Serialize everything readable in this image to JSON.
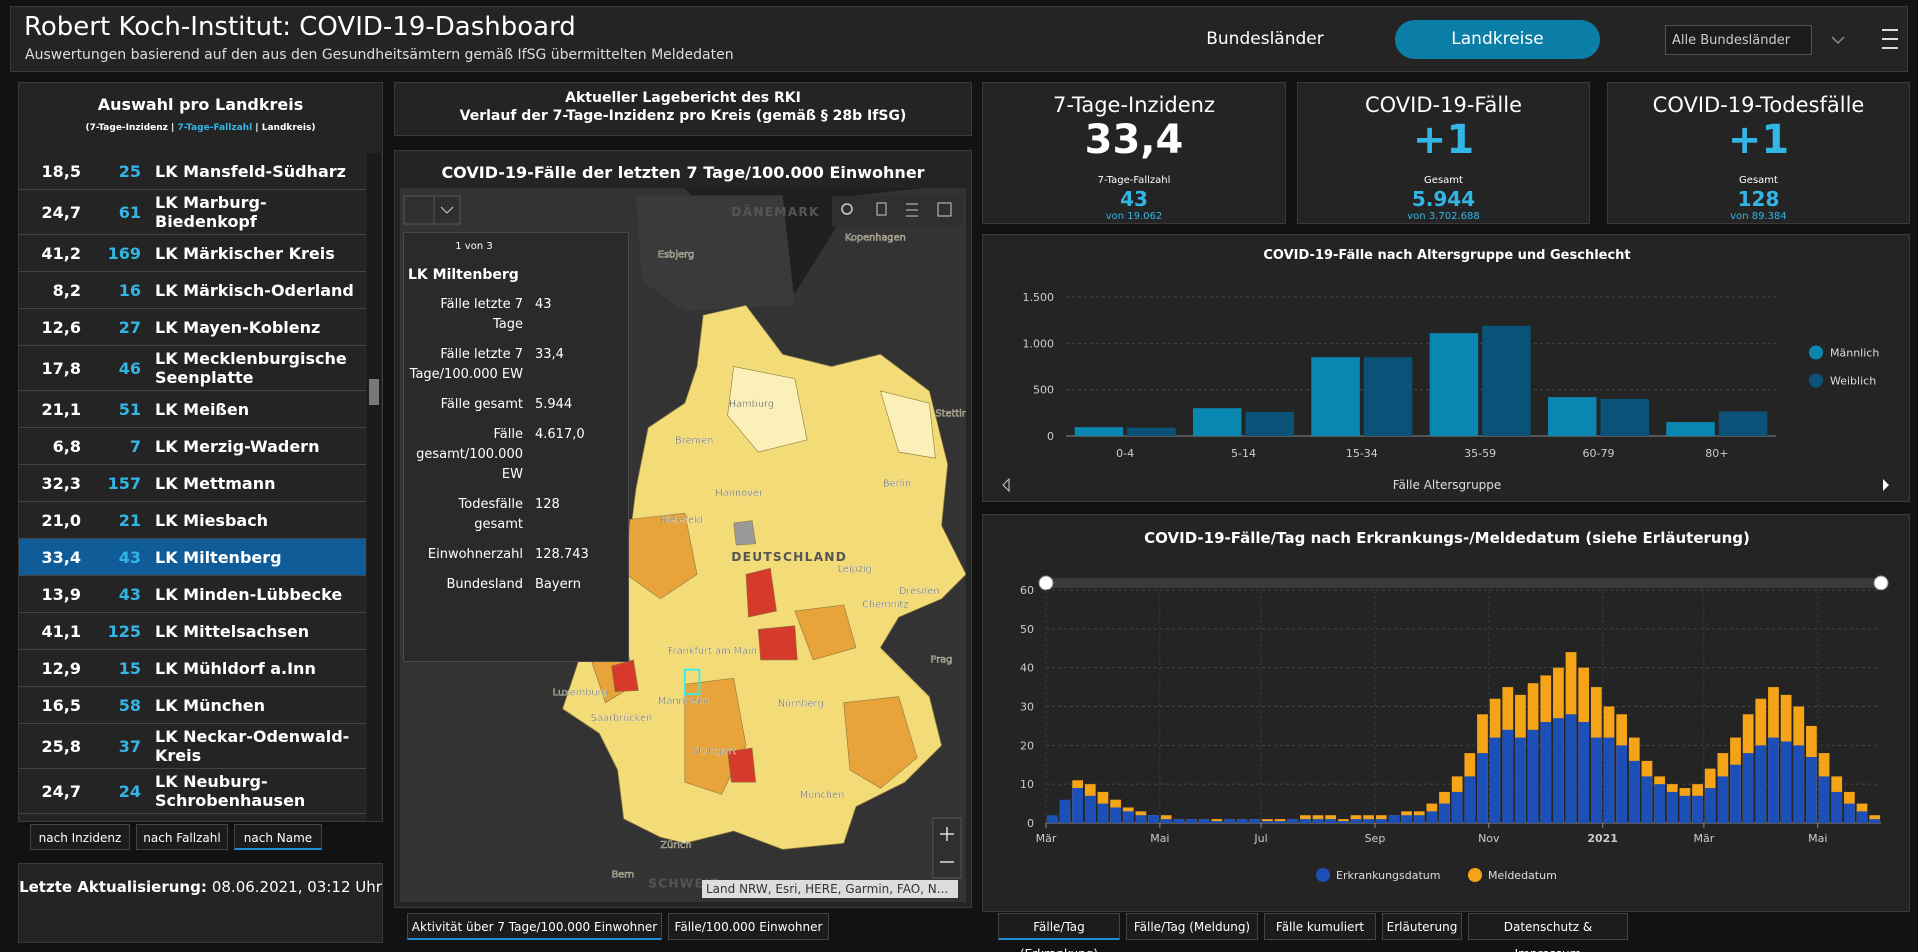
{
  "header": {
    "title": "Robert Koch-Institut: COVID-19-Dashboard",
    "subtitle": "Auswertungen basierend auf den aus den Gesundheitsämtern gemäß IfSG übermittelten Meldedaten",
    "nav": [
      "Bundesländer",
      "Landkreise"
    ],
    "dropdown": "Alle Bundesländer"
  },
  "list": {
    "title": "Auswahl pro Landkreis",
    "subtitle": [
      "(7-Tage-Inzidenz | ",
      "7-Tage-Fallzahl",
      " | Landkreis)"
    ],
    "rows": [
      [
        "18,5",
        "25",
        "LK Mansfeld-Südharz"
      ],
      [
        "24,7",
        "61",
        "LK Marburg-Biedenkopf"
      ],
      [
        "41,2",
        "169",
        "LK Märkischer Kreis"
      ],
      [
        "8,2",
        "16",
        "LK Märkisch-Oderland"
      ],
      [
        "12,6",
        "27",
        "LK Mayen-Koblenz"
      ],
      [
        "17,8",
        "46",
        "LK Mecklenburgische Seenplatte"
      ],
      [
        "21,1",
        "51",
        "LK Meißen"
      ],
      [
        "6,8",
        "7",
        "LK Merzig-Wadern"
      ],
      [
        "32,3",
        "157",
        "LK Mettmann"
      ],
      [
        "21,0",
        "21",
        "LK Miesbach"
      ],
      [
        "33,4",
        "43",
        "LK Miltenberg"
      ],
      [
        "13,9",
        "43",
        "LK Minden-Lübbecke"
      ],
      [
        "41,1",
        "125",
        "LK Mittelsachsen"
      ],
      [
        "12,9",
        "15",
        "LK Mühldorf a.Inn"
      ],
      [
        "16,5",
        "58",
        "LK München"
      ],
      [
        "25,8",
        "37",
        "LK Neckar-Odenwald-Kreis"
      ],
      [
        "24,7",
        "24",
        "LK Neuburg-Schrobenhausen"
      ]
    ],
    "sort_buttons": [
      "nach Inzidenz",
      "nach Fallzahl",
      "nach Name"
    ]
  },
  "update": {
    "label": "Letzte Aktualisierung:",
    "value": "08.06.2021, 03:12 Uhr"
  },
  "report": {
    "title": "Aktueller Lagebericht des RKI",
    "subtitle": "Verlauf der 7-Tage-Inzidenz pro Kreis (gemäß § 28b IfSG)"
  },
  "map": {
    "title": "COVID-19-Fälle der letzten 7 Tage/100.000 Einwohner",
    "labels": [
      "DÄNEMARK",
      "Kopenhagen",
      "Esbjerg",
      "Hamburg",
      "Bremen",
      "Hannover",
      "Berlin",
      "Stettin",
      "Bielefeld",
      "DEUTSCHLAND",
      "Leipzig",
      "Dresden",
      "Chemnitz",
      "Frankfurt am Main",
      "Mannheim",
      "Nürnberg",
      "Saarbrücken",
      "Stuttgart",
      "München",
      "Luxemburg",
      "Prag",
      "Zürich",
      "Bern",
      "SCHWEIZ"
    ],
    "popup": {
      "pager": "1 von 3",
      "title": "LK Miltenberg",
      "fields": [
        [
          "Fälle letzte 7 Tage",
          "43"
        ],
        [
          "Fälle letzte 7 Tage/100.000 EW",
          "33,4"
        ],
        [
          "Fälle gesamt",
          "5.944"
        ],
        [
          "Fälle gesamt/100.000 EW",
          "4.617,0"
        ],
        [
          "Todesfälle gesamt",
          "128"
        ],
        [
          "Einwohnerzahl",
          "128.743"
        ],
        [
          "Bundesland",
          "Bayern"
        ]
      ]
    },
    "attribution": "Land NRW, Esri, HERE, Garmin, FAO, N...",
    "tabs": [
      "Aktivität über 7 Tage/100.000 Einwohner",
      "Fälle/100.000 Einwohner"
    ]
  },
  "kpis": [
    {
      "title": "7-Tage-Inzidenz",
      "value": "33,4",
      "sub_label": "7-Tage-Fallzahl",
      "sub_value": "43",
      "total": "von 19.062"
    },
    {
      "title": "COVID-19-Fälle",
      "value": "+1",
      "sub_label": "Gesamt",
      "sub_value": "5.944",
      "total": "von 3.702.688"
    },
    {
      "title": "COVID-19-Todesfälle",
      "value": "+1",
      "sub_label": "Gesamt",
      "sub_value": "128",
      "total": "von 89.384"
    }
  ],
  "chart_data": [
    {
      "type": "bar",
      "title": "COVID-19-Fälle nach Altersgruppe und Geschlecht",
      "categories": [
        "0-4",
        "5-14",
        "15-34",
        "35-59",
        "60-79",
        "80+"
      ],
      "series": [
        {
          "name": "Männlich",
          "color": "#0a87b0",
          "values": [
            95,
            300,
            850,
            1110,
            420,
            150
          ]
        },
        {
          "name": "Weiblich",
          "color": "#0a5278",
          "values": [
            90,
            260,
            850,
            1190,
            400,
            265
          ]
        }
      ],
      "ylim": [
        0,
        1500
      ],
      "yticks": [
        0,
        500,
        {
          "value": 1000,
          "label": "1.000"
        },
        {
          "value": 1500,
          "label": "1.500"
        }
      ],
      "xlabel": "Fälle Altersgruppe",
      "grid": true,
      "legend": "right"
    },
    {
      "type": "bar",
      "title": "COVID-19-Fälle/Tag nach Erkrankungs-/Meldedatum (siehe Erläuterung)",
      "categories": [
        null,
        null,
        null,
        null,
        null,
        null,
        null,
        null,
        null,
        null,
        null,
        null,
        null,
        null,
        null,
        null,
        null,
        null,
        null,
        null,
        null,
        null,
        null,
        null,
        null,
        null,
        null,
        null,
        null,
        null,
        null,
        null,
        null,
        null,
        null,
        null,
        null,
        null,
        null,
        null,
        null,
        null,
        null,
        null,
        null,
        null,
        null,
        null,
        null,
        null,
        null,
        null,
        null,
        null,
        null,
        null,
        null,
        null,
        null,
        null,
        null,
        null,
        null,
        null,
        null,
        null
      ],
      "series": [
        {
          "name": "Erkrankungsdatum",
          "color": "#1d4fb8",
          "values": [
            2,
            6,
            9,
            7,
            5,
            4,
            3,
            2,
            2,
            1,
            1,
            1,
            1,
            0.5,
            1,
            1,
            1,
            0.5,
            0.5,
            1,
            1,
            1,
            1,
            0.5,
            1,
            1,
            1,
            2,
            2,
            2,
            3,
            5,
            8,
            12,
            18,
            22,
            24,
            22,
            24,
            26,
            27,
            28,
            26,
            22,
            22,
            20,
            16,
            12,
            10,
            8,
            7,
            7,
            9,
            12,
            15,
            18,
            20,
            22,
            21,
            20,
            17,
            12,
            8,
            5,
            3,
            1
          ]
        },
        {
          "name": "Meldedatum",
          "color": "#f5a418",
          "values": [
            1,
            5,
            11,
            10,
            8,
            6,
            4,
            3,
            2,
            2,
            1,
            1,
            1,
            1,
            1,
            1,
            1,
            1,
            1,
            1,
            2,
            2,
            2,
            1,
            2,
            2,
            2,
            2,
            3,
            3,
            5,
            8,
            12,
            18,
            28,
            32,
            35,
            33,
            36,
            38,
            40,
            44,
            40,
            35,
            30,
            28,
            22,
            16,
            12,
            10,
            9,
            10,
            14,
            18,
            22,
            28,
            32,
            35,
            33,
            30,
            25,
            18,
            12,
            8,
            5,
            2
          ]
        }
      ],
      "xticks": [
        {
          "value": 0,
          "label": "Mär"
        },
        {
          "value": 9,
          "label": "Mai"
        },
        {
          "value": 17,
          "label": "Jul"
        },
        {
          "value": 26,
          "label": "Sep"
        },
        {
          "value": 35,
          "label": "Nov"
        },
        {
          "value": 44,
          "label": "2021"
        },
        {
          "value": 52,
          "label": "Mär"
        },
        {
          "value": 61,
          "label": "Mai"
        }
      ],
      "ylim": [
        0,
        60
      ],
      "yticks": [
        0,
        10,
        20,
        30,
        40,
        50,
        60
      ],
      "grid": true,
      "legend": "bottom",
      "tabs": [
        "Fälle/Tag (Erkrankung)",
        "Fälle/Tag (Meldung)",
        "Fälle kumuliert",
        "Erläuterung",
        "Datenschutz & Impressum"
      ]
    }
  ]
}
